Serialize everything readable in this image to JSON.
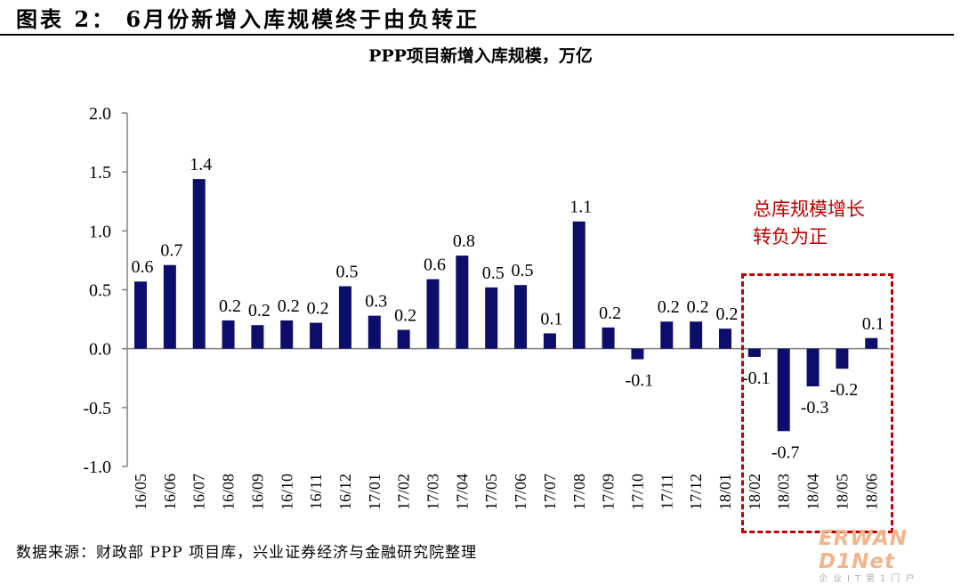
{
  "header": {
    "figure_title": "图表 2：  6月份新增入库规模终于由负转正",
    "source": "数据来源：财政部 PPP 项目库，兴业证券经济与金融研究院整理"
  },
  "annotation": {
    "line1": "总库规模增长",
    "line2": "转负为正"
  },
  "watermark": {
    "brand": "ERWAN D1Net",
    "tagline": "企业IT第1门户"
  },
  "colors": {
    "bar": "#0d0d6b",
    "annotation": "#c00000",
    "axis": "#808080"
  },
  "chart_data": {
    "type": "bar",
    "title": "PPP项目新增入库规模，万亿",
    "categories": [
      "16/05",
      "16/06",
      "16/07",
      "16/08",
      "16/09",
      "16/10",
      "16/11",
      "16/12",
      "17/01",
      "17/02",
      "17/03",
      "17/04",
      "17/05",
      "17/06",
      "17/07",
      "17/08",
      "17/09",
      "17/10",
      "17/11",
      "17/12",
      "18/01",
      "18/02",
      "18/03",
      "18/04",
      "18/05",
      "18/06"
    ],
    "values": [
      0.57,
      0.71,
      1.44,
      0.24,
      0.2,
      0.24,
      0.22,
      0.53,
      0.28,
      0.16,
      0.59,
      0.79,
      0.52,
      0.54,
      0.13,
      1.08,
      0.18,
      -0.09,
      0.23,
      0.23,
      0.17,
      -0.07,
      -0.7,
      -0.32,
      -0.17,
      0.09
    ],
    "labels": [
      "0.6",
      "0.7",
      "1.4",
      "0.2",
      "0.2",
      "0.2",
      "0.2",
      "0.5",
      "0.3",
      "0.2",
      "0.6",
      "0.8",
      "0.5",
      "0.5",
      "0.1",
      "1.1",
      "0.2",
      "-0.1",
      "0.2",
      "0.2",
      "0.2",
      "-0.1",
      "-0.7",
      "-0.3",
      "-0.2",
      "0.1"
    ],
    "yticks": [
      "2.0",
      "1.5",
      "1.0",
      "0.5",
      "0.0",
      "-0.5",
      "-1.0"
    ],
    "ylim": [
      -1.0,
      2.0
    ],
    "xlabel": "",
    "ylabel": "",
    "grid": false,
    "legend": "none"
  }
}
